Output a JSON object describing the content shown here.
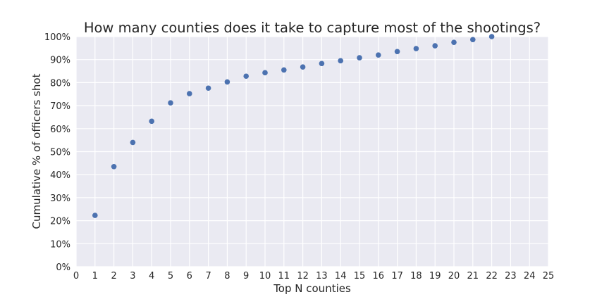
{
  "chart_data": {
    "type": "scatter",
    "title": "How many counties does it take to capture most of the shootings?",
    "xlabel": "Top N counties",
    "ylabel": "Cumulative % of officers shot",
    "xlim": [
      0,
      25
    ],
    "ylim": [
      0,
      100
    ],
    "x_ticks": [
      0,
      1,
      2,
      3,
      4,
      5,
      6,
      7,
      8,
      9,
      10,
      11,
      12,
      13,
      14,
      15,
      16,
      17,
      18,
      19,
      20,
      21,
      22,
      23,
      24,
      25
    ],
    "y_ticks": [
      0,
      10,
      20,
      30,
      40,
      50,
      60,
      70,
      80,
      90,
      100
    ],
    "y_tick_suffix": "%",
    "grid": true,
    "background_color": "#EAEAF2",
    "marker_color": "#4C72B0",
    "points": {
      "x": [
        1,
        2,
        3,
        4,
        5,
        6,
        7,
        8,
        9,
        10,
        11,
        12,
        13,
        14,
        15,
        16,
        17,
        18,
        19,
        20,
        21,
        22
      ],
      "y": [
        22.3,
        43.5,
        54.0,
        63.2,
        71.2,
        75.2,
        77.6,
        80.3,
        82.8,
        84.3,
        85.5,
        86.8,
        88.3,
        89.5,
        90.8,
        92.0,
        93.5,
        94.8,
        96.0,
        97.5,
        98.7,
        100.0
      ]
    }
  }
}
